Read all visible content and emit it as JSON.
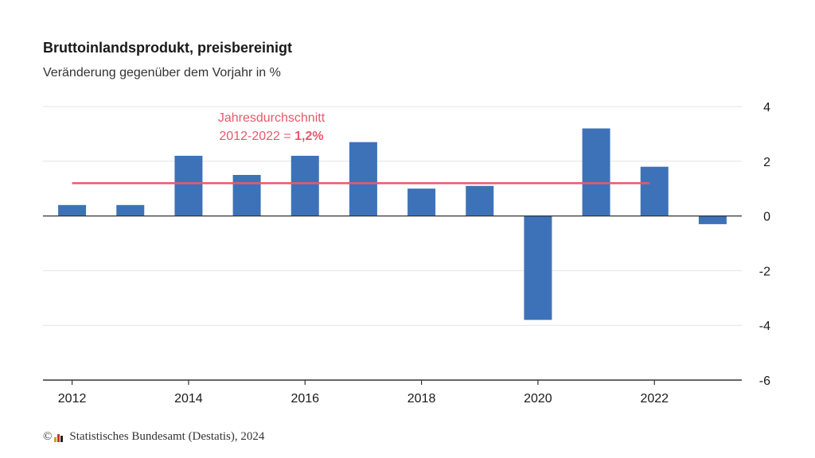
{
  "chart_data": {
    "type": "bar",
    "title": "Bruttoinlandsprodukt, preisbereinigt",
    "subtitle": "Veränderung gegenüber dem Vorjahr in %",
    "categories": [
      "2012",
      "2013",
      "2014",
      "2015",
      "2016",
      "2017",
      "2018",
      "2019",
      "2020",
      "2021",
      "2022",
      "2023"
    ],
    "values": [
      0.4,
      0.4,
      2.2,
      1.5,
      2.2,
      2.7,
      1.0,
      1.1,
      -3.8,
      3.2,
      1.8,
      -0.3
    ],
    "x_tick_labels": [
      "2012",
      "2014",
      "2016",
      "2018",
      "2020",
      "2022"
    ],
    "ylim": [
      -6,
      4
    ],
    "y_ticks": [
      4,
      2,
      0,
      -2,
      -4,
      -6
    ],
    "y_tick_labels": [
      "4",
      "2",
      "0",
      "-2",
      "-4",
      "-6"
    ],
    "y_axis_side": "right",
    "grid": true,
    "bar_color": "#3d72b8",
    "average_line": {
      "value": 1.2,
      "from": "2012",
      "to": "2022",
      "color": "#e8596a",
      "label_line1": "Jahresdurchschnitt",
      "label_line2_prefix": "2012-2022 = ",
      "label_line2_value": "1,2%"
    }
  },
  "footer": {
    "copyright_symbol": "©",
    "source": "Statistisches Bundesamt (Destatis), 2024"
  },
  "colors": {
    "logo": [
      "#d4a017",
      "#c0392b",
      "#222222"
    ]
  }
}
